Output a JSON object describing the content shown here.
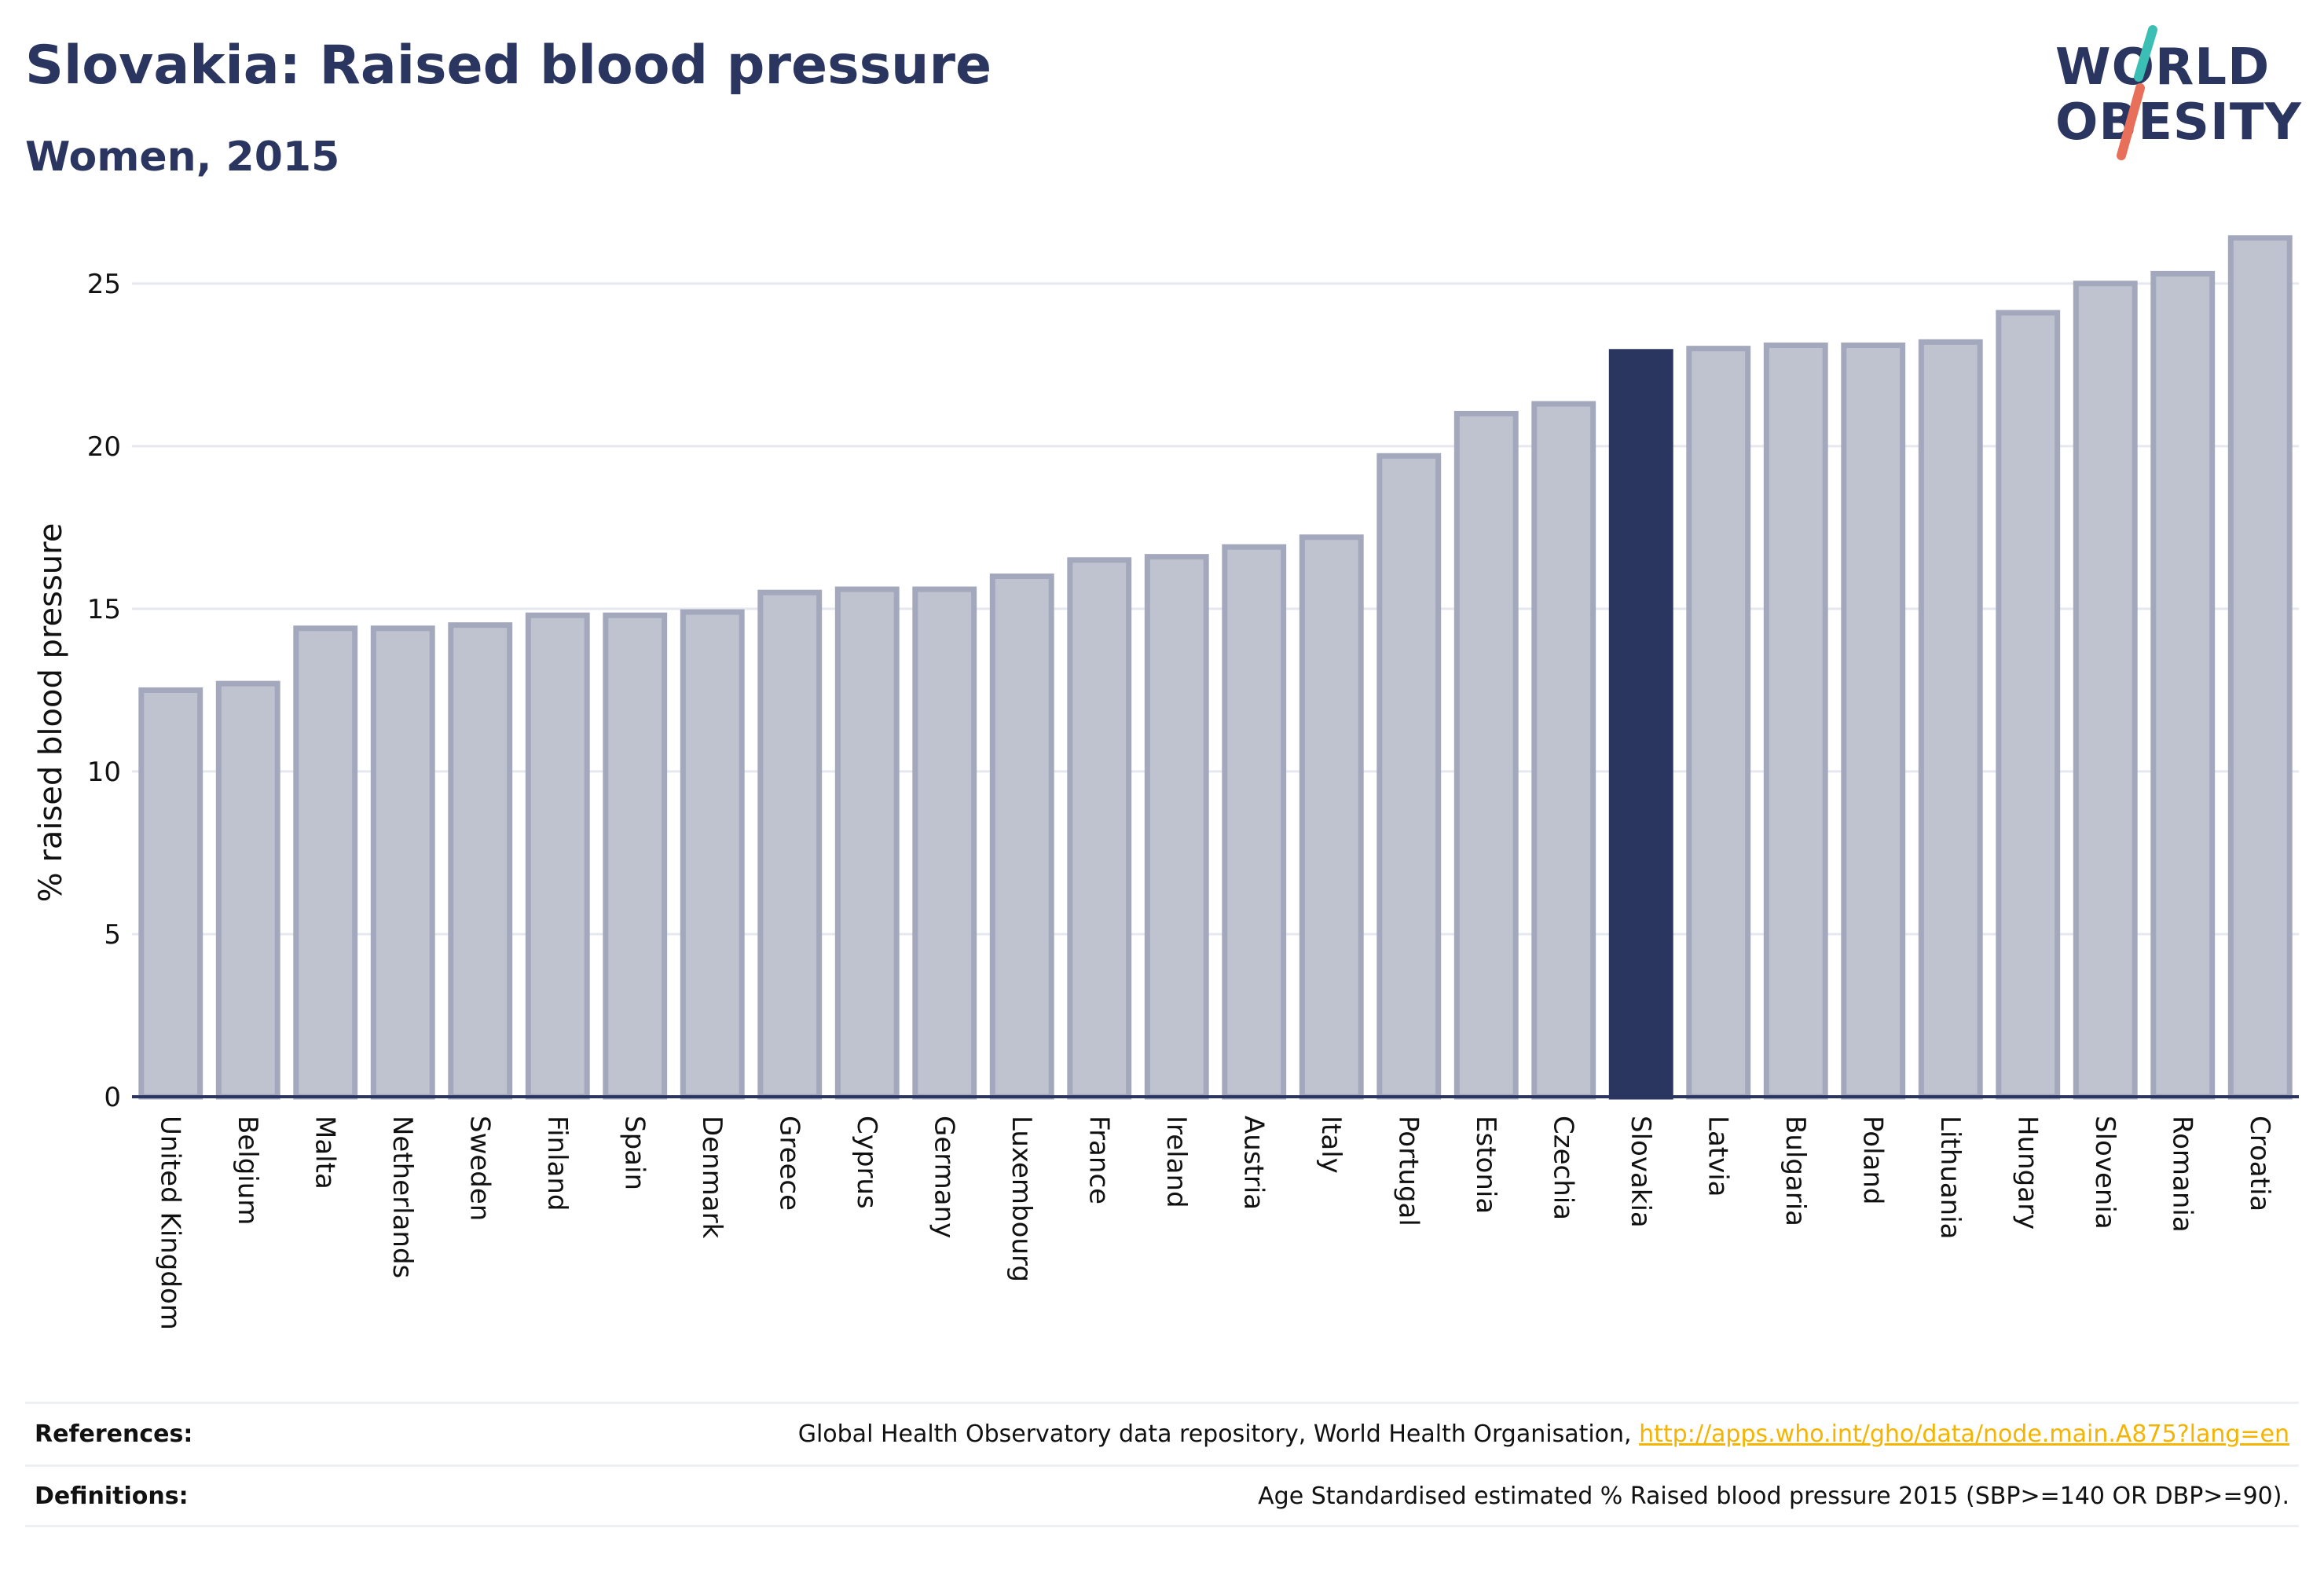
{
  "header": {
    "title": "Slovakia: Raised blood pressure",
    "subtitle": "Women, 2015"
  },
  "logo": {
    "line1": "WORLD",
    "line2": "OBESITY",
    "accent_colors": [
      "#3bbfb4",
      "#e8705a"
    ]
  },
  "chart_data": {
    "type": "bar",
    "title": "Slovakia: Raised blood pressure",
    "subtitle": "Women, 2015",
    "xlabel": "",
    "ylabel": "% raised blood pressure",
    "ylim": [
      0,
      27
    ],
    "yticks": [
      0,
      5,
      10,
      15,
      20,
      25
    ],
    "grid": true,
    "highlight": "Slovakia",
    "categories": [
      "United Kingdom",
      "Belgium",
      "Malta",
      "Netherlands",
      "Sweden",
      "Finland",
      "Spain",
      "Denmark",
      "Greece",
      "Cyprus",
      "Germany",
      "Luxembourg",
      "France",
      "Ireland",
      "Austria",
      "Italy",
      "Portugal",
      "Estonia",
      "Czechia",
      "Slovakia",
      "Latvia",
      "Bulgaria",
      "Poland",
      "Lithuania",
      "Hungary",
      "Slovenia",
      "Romania",
      "Croatia"
    ],
    "values": [
      12.5,
      12.7,
      14.4,
      14.4,
      14.5,
      14.8,
      14.8,
      14.9,
      15.5,
      15.6,
      15.6,
      16.0,
      16.5,
      16.6,
      16.9,
      17.2,
      19.7,
      21.0,
      21.3,
      22.9,
      23.0,
      23.1,
      23.1,
      23.2,
      24.1,
      25.0,
      25.3,
      26.4
    ],
    "colors": {
      "bar": "#bfc2cf",
      "bar_stroke": "#a3a8bd",
      "highlight": "#2a3560",
      "grid": "#e6e8ef",
      "axis": "#2a3560"
    }
  },
  "footer": {
    "references_label": "References:",
    "references_text": "Global Health Observatory data repository, World Health Organisation,",
    "references_link": "http://apps.who.int/gho/data/node.main.A875?lang=en",
    "definitions_label": "Definitions:",
    "definitions_text": "Age Standardised estimated % Raised blood pressure 2015 (SBP>=140 OR DBP>=90)."
  }
}
